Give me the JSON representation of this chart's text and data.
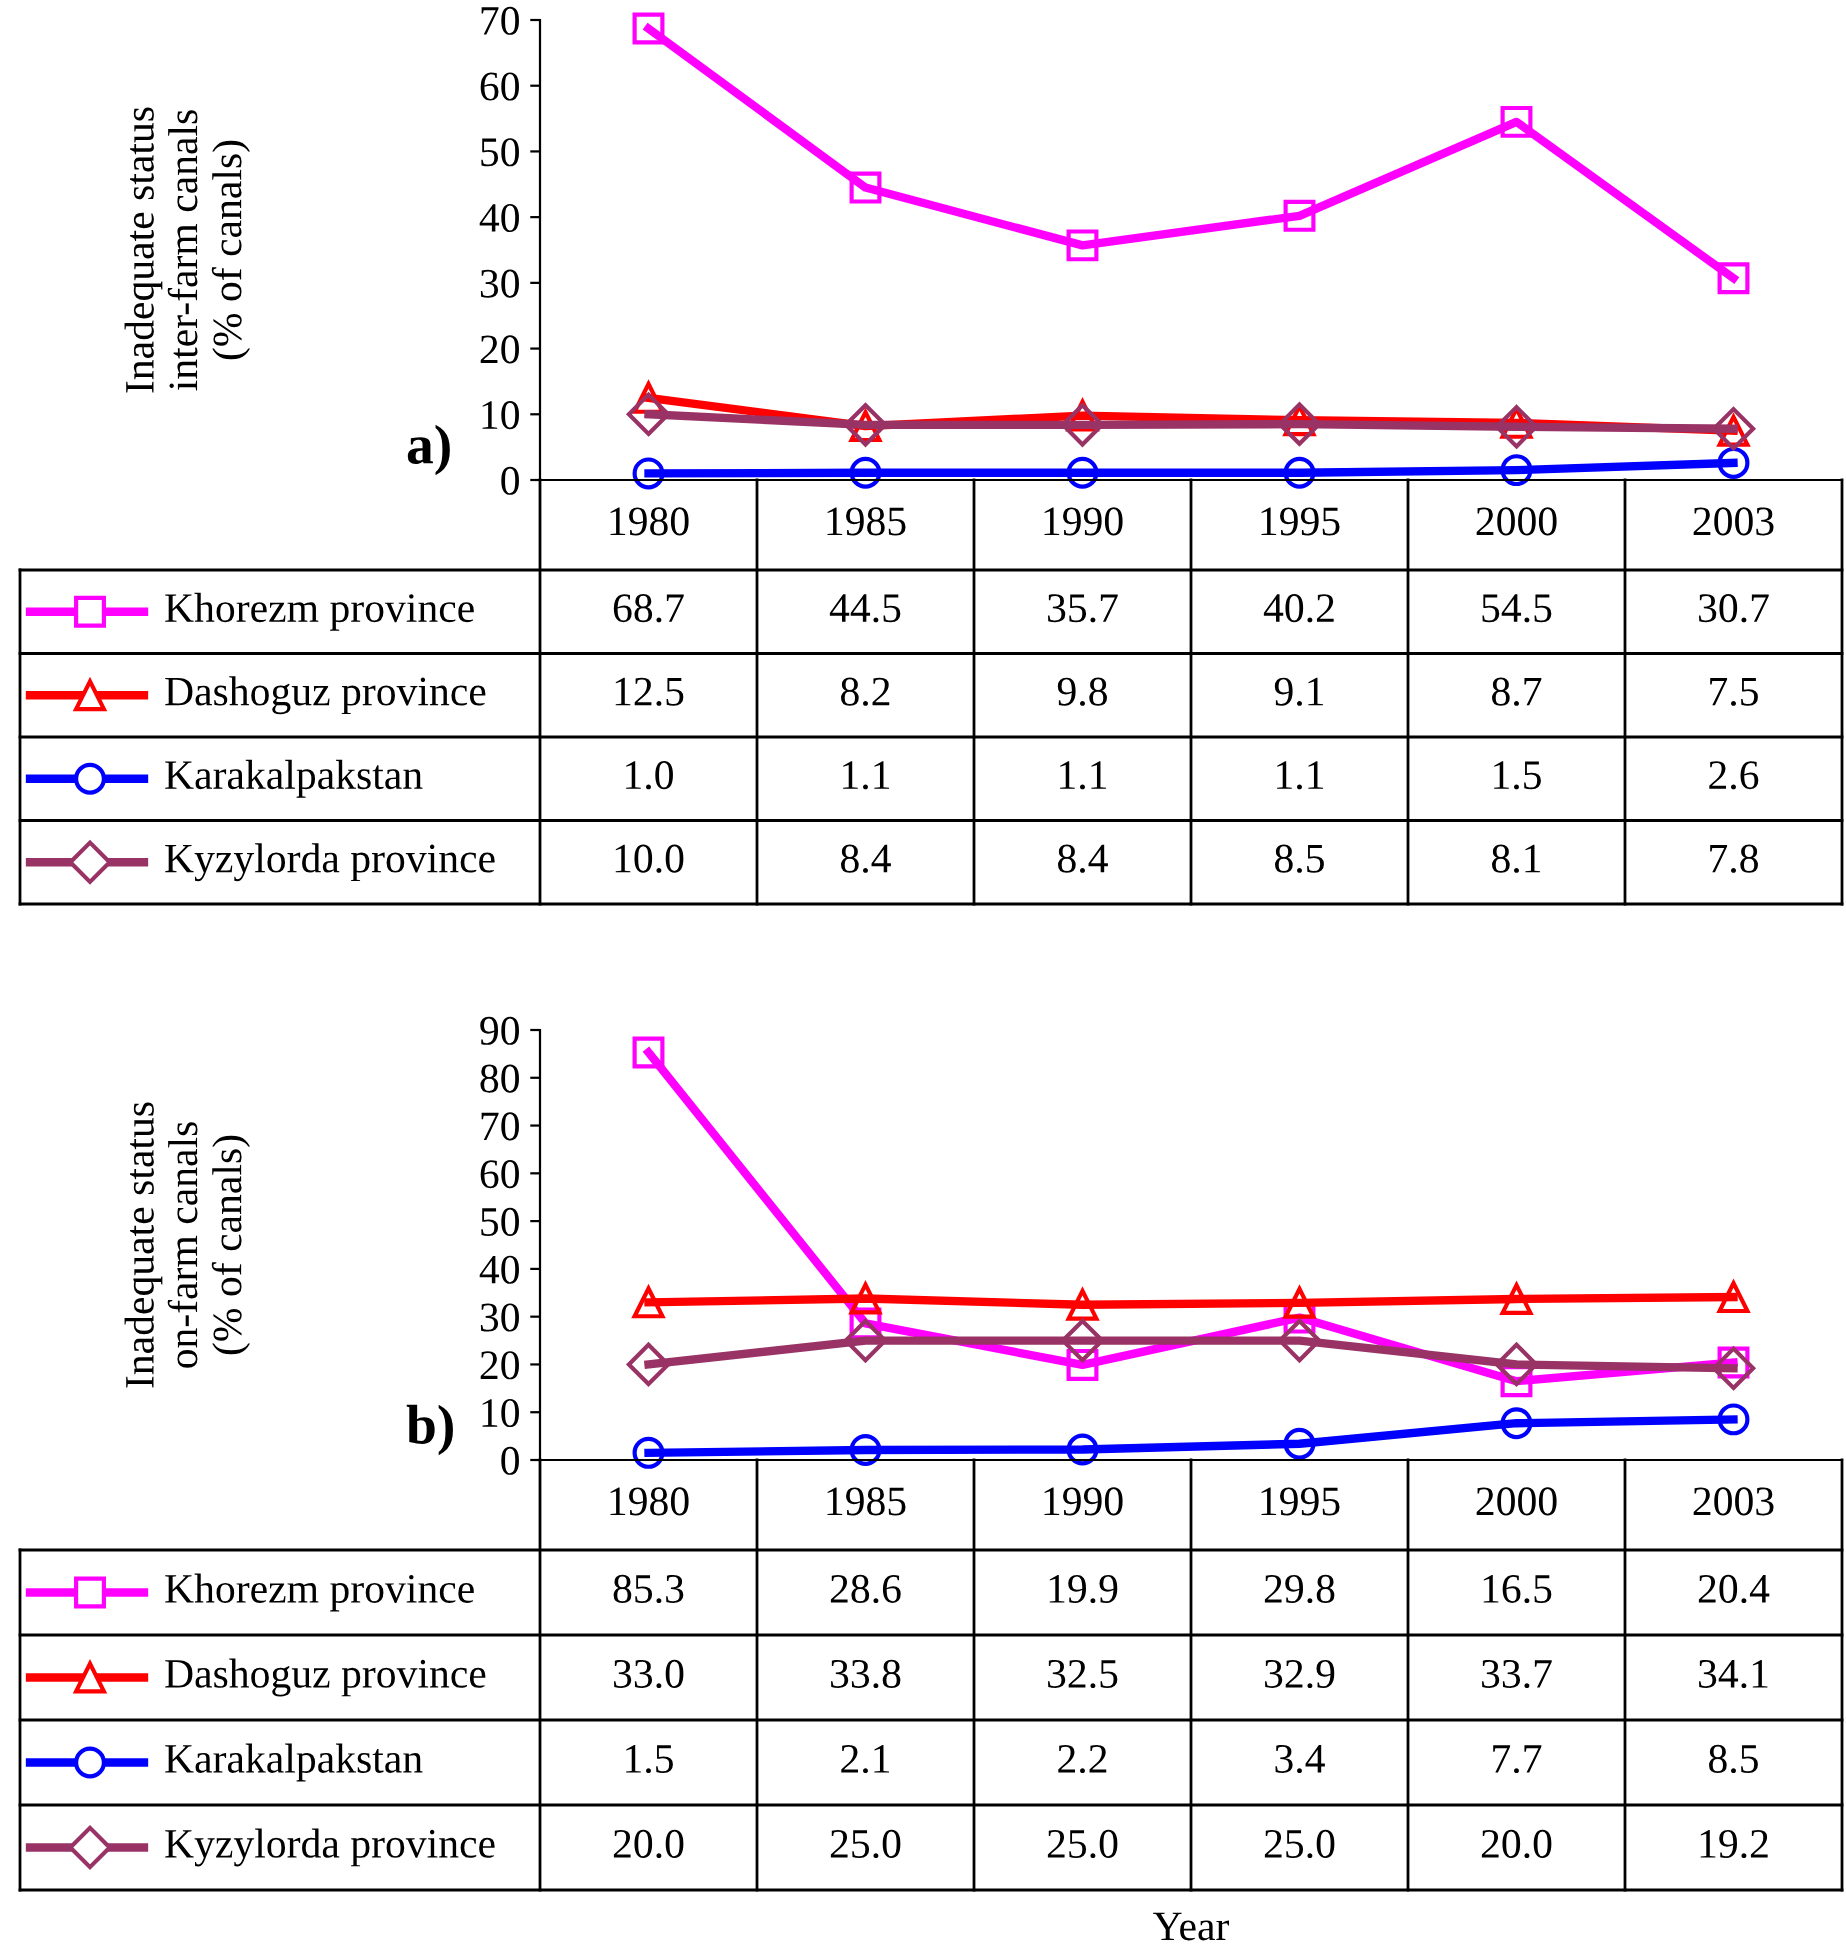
{
  "chart_data": [
    {
      "type": "line",
      "ylabel": "Inadequate status\ninter-farm canals\n(% of canals)",
      "annotations": [
        "a)"
      ],
      "categories": [
        "1980",
        "1985",
        "1990",
        "1995",
        "2000",
        "2003"
      ],
      "ylim": [
        0,
        70
      ],
      "yticks": [
        0,
        10,
        20,
        30,
        40,
        50,
        60,
        70
      ],
      "grid": false,
      "legend": "bottom",
      "series": [
        {
          "name": "Khorezm province",
          "color": "#ff00ff",
          "marker": "square",
          "values": [
            68.7,
            44.5,
            35.7,
            40.2,
            54.5,
            30.7
          ],
          "value_labels": [
            "68.7",
            "44.5",
            "35.7",
            "40.2",
            "54.5",
            "30.7"
          ]
        },
        {
          "name": "Dashoguz province",
          "color": "#ff0000",
          "marker": "triangle",
          "values": [
            12.5,
            8.2,
            9.8,
            9.1,
            8.7,
            7.5
          ],
          "value_labels": [
            "12.5",
            "8.2",
            "9.8",
            "9.1",
            "8.7",
            "7.5"
          ]
        },
        {
          "name": "Karakalpakstan",
          "color": "#0000ff",
          "marker": "circle",
          "values": [
            1.0,
            1.1,
            1.1,
            1.1,
            1.5,
            2.6
          ],
          "value_labels": [
            "1.0",
            "1.1",
            "1.1",
            "1.1",
            "1.5",
            "2.6"
          ]
        },
        {
          "name": "Kyzylorda province",
          "color": "#993366",
          "marker": "diamond",
          "values": [
            10.0,
            8.4,
            8.4,
            8.5,
            8.1,
            7.8
          ],
          "value_labels": [
            "10.0",
            "8.4",
            "8.4",
            "8.5",
            "8.1",
            "7.8"
          ]
        }
      ]
    },
    {
      "type": "line",
      "ylabel": "Inadequate status\non-farm canals\n(% of canals)",
      "xlabel": "Year",
      "annotations": [
        "b)"
      ],
      "categories": [
        "1980",
        "1985",
        "1990",
        "1995",
        "2000",
        "2003"
      ],
      "ylim": [
        0,
        90
      ],
      "yticks": [
        0,
        10,
        20,
        30,
        40,
        50,
        60,
        70,
        80,
        90
      ],
      "grid": false,
      "legend": "bottom",
      "series": [
        {
          "name": "Khorezm province",
          "color": "#ff00ff",
          "marker": "square",
          "values": [
            85.3,
            28.6,
            19.9,
            29.8,
            16.5,
            20.4
          ],
          "value_labels": [
            "85.3",
            "28.6",
            "19.9",
            "29.8",
            "16.5",
            "20.4"
          ]
        },
        {
          "name": "Dashoguz province",
          "color": "#ff0000",
          "marker": "triangle",
          "values": [
            33.0,
            33.8,
            32.5,
            32.9,
            33.7,
            34.1
          ],
          "value_labels": [
            "33.0",
            "33.8",
            "32.5",
            "32.9",
            "33.7",
            "34.1"
          ]
        },
        {
          "name": "Karakalpakstan",
          "color": "#0000ff",
          "marker": "circle",
          "values": [
            1.5,
            2.1,
            2.2,
            3.4,
            7.7,
            8.5
          ],
          "value_labels": [
            "1.5",
            "2.1",
            "2.2",
            "3.4",
            "7.7",
            "8.5"
          ]
        },
        {
          "name": "Kyzylorda province",
          "color": "#993366",
          "marker": "diamond",
          "values": [
            20.0,
            25.0,
            25.0,
            25.0,
            20.0,
            19.2
          ],
          "value_labels": [
            "20.0",
            "25.0",
            "25.0",
            "25.0",
            "20.0",
            "19.2"
          ]
        }
      ]
    }
  ]
}
